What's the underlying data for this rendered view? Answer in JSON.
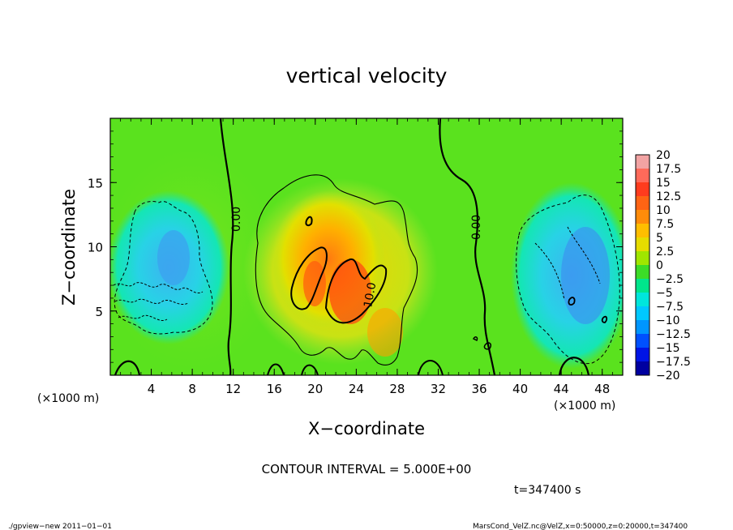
{
  "chart_data": {
    "type": "heatmap",
    "title": "vertical velocity",
    "xlabel": "X−coordinate",
    "ylabel": "Z−coordinate",
    "x_unit_left": "(×1000 m)",
    "x_unit_right": "(×1000 m)",
    "xlim": [
      0,
      50
    ],
    "ylim": [
      0,
      20
    ],
    "x_ticks": [
      "4",
      "8",
      "12",
      "16",
      "20",
      "24",
      "28",
      "32",
      "36",
      "40",
      "44",
      "48"
    ],
    "y_ticks": [
      "5",
      "10",
      "15"
    ],
    "colorbar": {
      "labels": [
        "20",
        "17.5",
        "15",
        "12.5",
        "10",
        "7.5",
        "5",
        "2.5",
        "0",
        "−2.5",
        "−5",
        "−7.5",
        "−10",
        "−12.5",
        "−15",
        "−17.5",
        "−20"
      ],
      "colors": [
        "#f2a3a3",
        "#ff6a5a",
        "#ff3c1e",
        "#ff6414",
        "#ff8c0a",
        "#ffbe00",
        "#e6dc00",
        "#a0e600",
        "#3cdc28",
        "#00e68c",
        "#00e6dc",
        "#00c8ff",
        "#0096ff",
        "#0050ff",
        "#0014e6",
        "#0000a0",
        "#6400b4"
      ]
    },
    "contour_labels": [
      "0.00",
      "0.00",
      "10.0"
    ],
    "contour_interval": "CONTOUR INTERVAL = 5.000E+00",
    "time": "t=347400 s"
  },
  "footer": {
    "left": "./gpview−new   2011−01−01",
    "right": "MarsCond_VelZ.nc@VelZ,x=0:50000,z=0:20000,t=347400"
  }
}
